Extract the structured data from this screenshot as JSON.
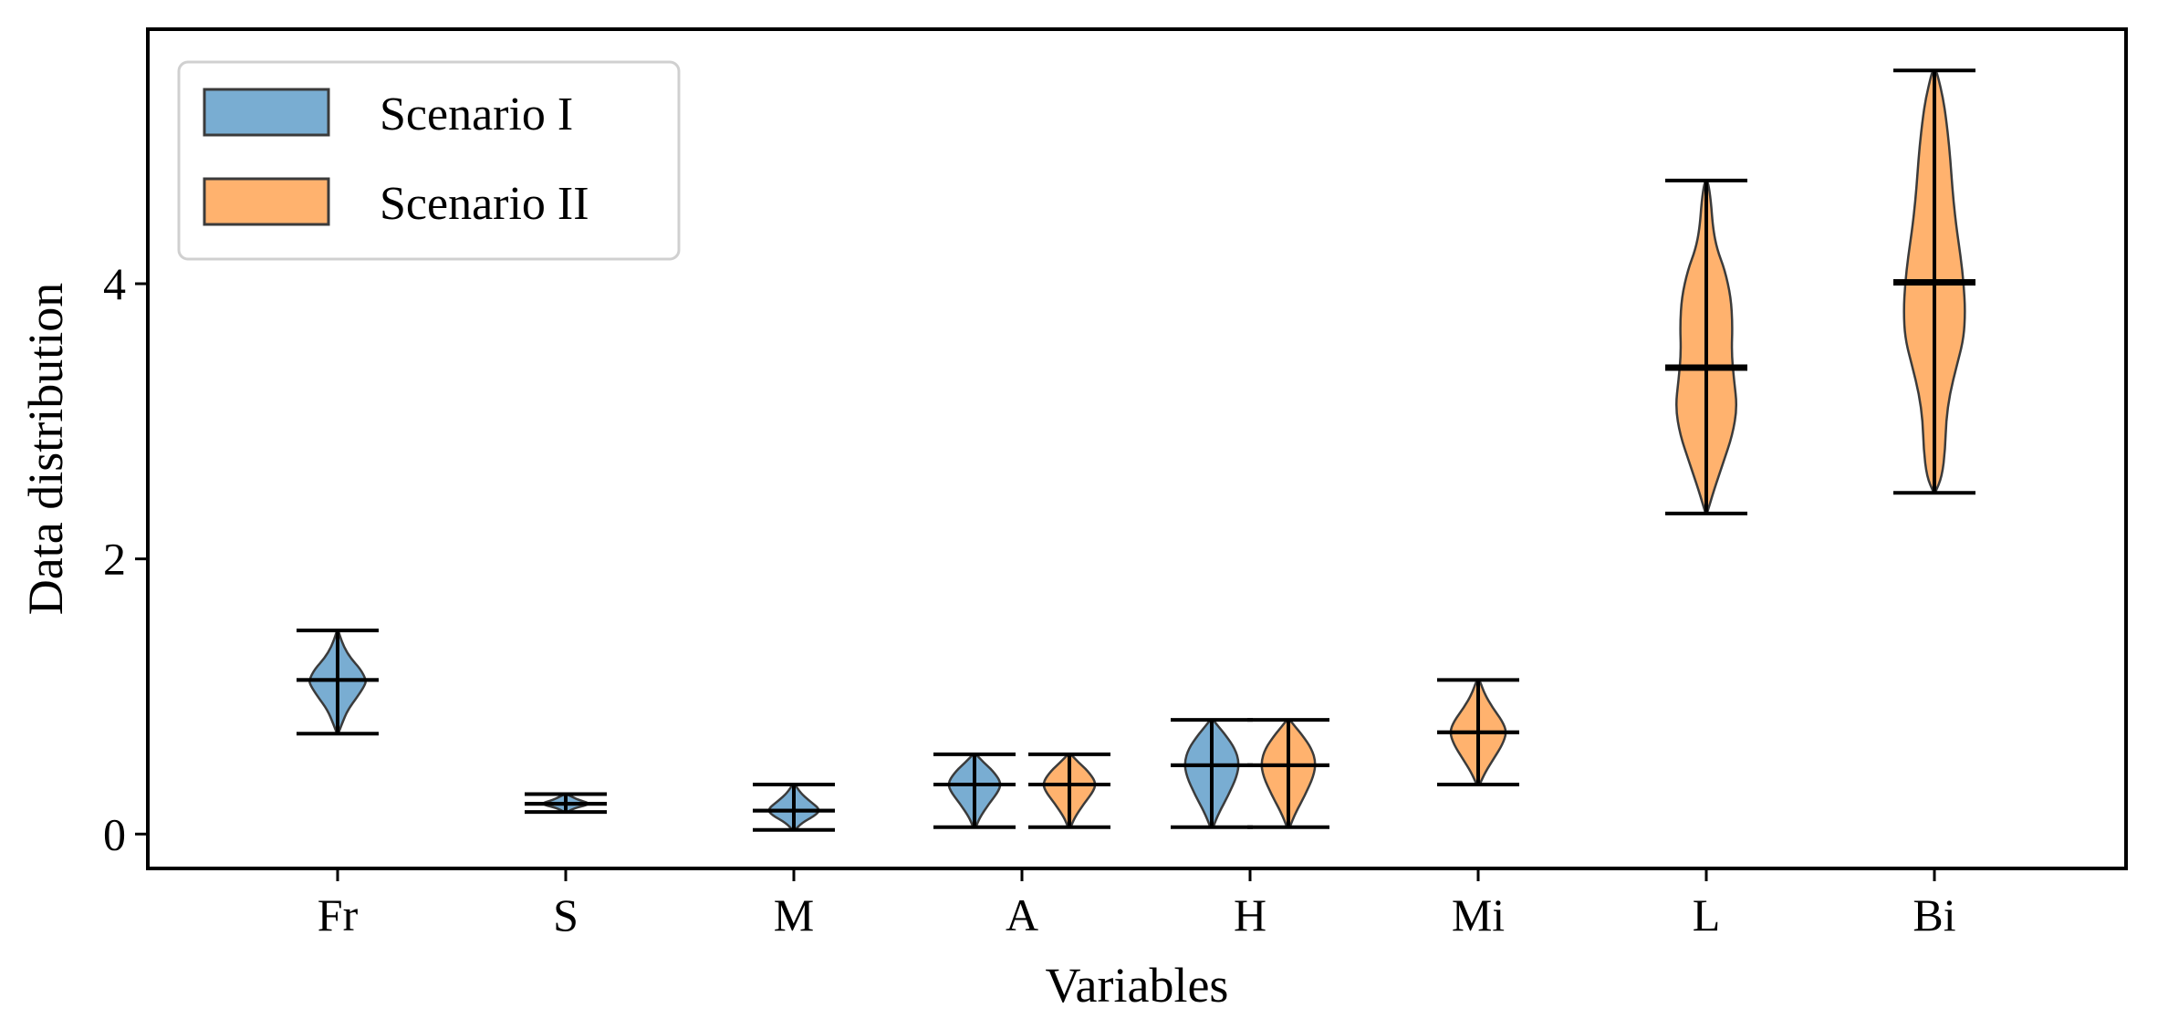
{
  "chart_data": {
    "type": "violin",
    "title": "",
    "xlabel": "Variables",
    "ylabel": "Data distribution",
    "ylim": [
      -0.25,
      5.85
    ],
    "yticks": [
      0,
      2,
      4
    ],
    "categories": [
      "Fr",
      "S",
      "M",
      "A",
      "H",
      "Mi",
      "L",
      "Bi"
    ],
    "legend_position": "top-left",
    "colors": {
      "scenario1_fill": "#1f77b4",
      "scenario2_fill": "#ff7f0e",
      "edge": "#3b3b3b",
      "stats": "#000000"
    },
    "series": [
      {
        "name": "Scenario I",
        "violins": [
          {
            "category": "Fr",
            "min": 0.73,
            "max": 1.48,
            "mean": 1.12,
            "median": 1.12,
            "width": 0.25,
            "profile": [
              [
                0.73,
                0.02
              ],
              [
                0.8,
                0.15
              ],
              [
                0.9,
                0.35
              ],
              [
                1.0,
                0.7
              ],
              [
                1.08,
                0.95
              ],
              [
                1.12,
                1.0
              ],
              [
                1.2,
                0.8
              ],
              [
                1.28,
                0.45
              ],
              [
                1.36,
                0.22
              ],
              [
                1.44,
                0.08
              ],
              [
                1.48,
                0.02
              ]
            ]
          },
          {
            "category": "S",
            "min": 0.16,
            "max": 0.29,
            "mean": 0.22,
            "median": 0.22,
            "width": 0.23,
            "profile": [
              [
                0.16,
                0.05
              ],
              [
                0.19,
                0.35
              ],
              [
                0.22,
                1.0
              ],
              [
                0.25,
                0.45
              ],
              [
                0.29,
                0.05
              ]
            ]
          },
          {
            "category": "M",
            "min": 0.03,
            "max": 0.36,
            "mean": 0.17,
            "median": 0.17,
            "width": 0.23,
            "profile": [
              [
                0.03,
                0.05
              ],
              [
                0.08,
                0.3
              ],
              [
                0.14,
                0.85
              ],
              [
                0.18,
                1.0
              ],
              [
                0.24,
                0.6
              ],
              [
                0.3,
                0.25
              ],
              [
                0.36,
                0.05
              ]
            ]
          },
          {
            "category": "A",
            "min": 0.05,
            "max": 0.58,
            "mean": 0.36,
            "median": 0.36,
            "width": 0.23,
            "profile": [
              [
                0.05,
                0.05
              ],
              [
                0.12,
                0.2
              ],
              [
                0.22,
                0.55
              ],
              [
                0.32,
                0.95
              ],
              [
                0.38,
                1.0
              ],
              [
                0.46,
                0.7
              ],
              [
                0.52,
                0.35
              ],
              [
                0.58,
                0.05
              ]
            ]
          },
          {
            "category": "H",
            "min": 0.05,
            "max": 0.83,
            "mean": 0.5,
            "median": 0.5,
            "width": 0.24,
            "profile": [
              [
                0.05,
                0.05
              ],
              [
                0.15,
                0.25
              ],
              [
                0.28,
                0.6
              ],
              [
                0.42,
                0.92
              ],
              [
                0.52,
                1.0
              ],
              [
                0.62,
                0.85
              ],
              [
                0.72,
                0.5
              ],
              [
                0.78,
                0.25
              ],
              [
                0.83,
                0.05
              ]
            ]
          }
        ]
      },
      {
        "name": "Scenario II",
        "violins": [
          {
            "category": "A",
            "min": 0.05,
            "max": 0.58,
            "mean": 0.36,
            "median": 0.36,
            "width": 0.23,
            "profile": [
              [
                0.05,
                0.05
              ],
              [
                0.12,
                0.2
              ],
              [
                0.22,
                0.55
              ],
              [
                0.32,
                0.95
              ],
              [
                0.38,
                1.0
              ],
              [
                0.46,
                0.7
              ],
              [
                0.52,
                0.35
              ],
              [
                0.58,
                0.05
              ]
            ]
          },
          {
            "category": "H",
            "min": 0.05,
            "max": 0.83,
            "mean": 0.5,
            "median": 0.5,
            "width": 0.24,
            "profile": [
              [
                0.05,
                0.05
              ],
              [
                0.15,
                0.25
              ],
              [
                0.28,
                0.6
              ],
              [
                0.42,
                0.92
              ],
              [
                0.52,
                1.0
              ],
              [
                0.62,
                0.85
              ],
              [
                0.72,
                0.5
              ],
              [
                0.78,
                0.25
              ],
              [
                0.83,
                0.05
              ]
            ]
          },
          {
            "category": "Mi",
            "min": 0.36,
            "max": 1.12,
            "mean": 0.74,
            "median": 0.74,
            "width": 0.25,
            "profile": [
              [
                0.36,
                0.05
              ],
              [
                0.45,
                0.25
              ],
              [
                0.55,
                0.55
              ],
              [
                0.65,
                0.85
              ],
              [
                0.74,
                1.0
              ],
              [
                0.82,
                0.85
              ],
              [
                0.92,
                0.5
              ],
              [
                1.02,
                0.22
              ],
              [
                1.12,
                0.05
              ]
            ]
          },
          {
            "category": "L",
            "min": 2.33,
            "max": 4.75,
            "mean": 3.38,
            "median": 3.4,
            "width": 0.27,
            "profile": [
              [
                2.33,
                0.02
              ],
              [
                2.5,
                0.25
              ],
              [
                2.7,
                0.55
              ],
              [
                2.9,
                0.85
              ],
              [
                3.1,
                1.0
              ],
              [
                3.3,
                0.9
              ],
              [
                3.5,
                0.82
              ],
              [
                3.7,
                0.85
              ],
              [
                3.9,
                0.8
              ],
              [
                4.1,
                0.6
              ],
              [
                4.25,
                0.35
              ],
              [
                4.4,
                0.22
              ],
              [
                4.6,
                0.15
              ],
              [
                4.75,
                0.05
              ]
            ]
          },
          {
            "category": "Bi",
            "min": 2.48,
            "max": 5.55,
            "mean": 4.0,
            "median": 4.02,
            "width": 0.27,
            "profile": [
              [
                2.48,
                0.02
              ],
              [
                2.6,
                0.25
              ],
              [
                2.8,
                0.35
              ],
              [
                3.0,
                0.38
              ],
              [
                3.2,
                0.5
              ],
              [
                3.4,
                0.72
              ],
              [
                3.6,
                0.95
              ],
              [
                3.8,
                1.0
              ],
              [
                4.0,
                0.95
              ],
              [
                4.2,
                0.85
              ],
              [
                4.4,
                0.72
              ],
              [
                4.6,
                0.62
              ],
              [
                4.8,
                0.55
              ],
              [
                5.0,
                0.48
              ],
              [
                5.2,
                0.38
              ],
              [
                5.35,
                0.28
              ],
              [
                5.5,
                0.12
              ],
              [
                5.55,
                0.05
              ]
            ]
          }
        ]
      }
    ]
  }
}
